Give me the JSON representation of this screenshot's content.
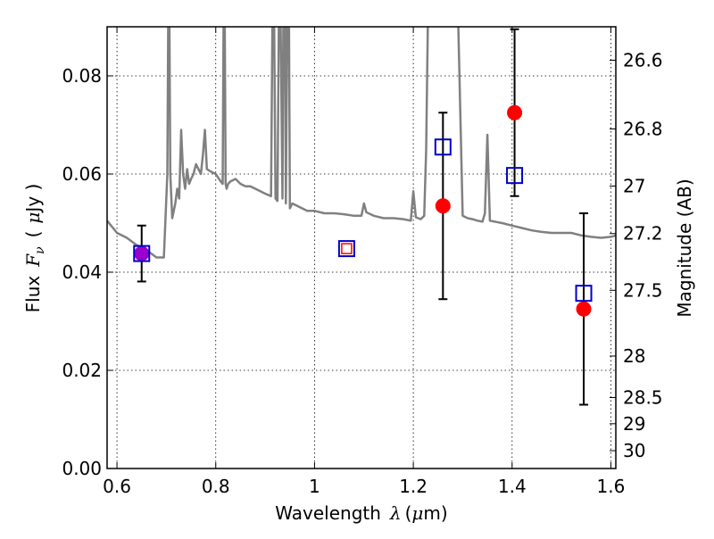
{
  "chart_data": {
    "type": "scatter",
    "title": "",
    "xlabel": "Wavelength",
    "xlabel_symbol": "λ",
    "xlabel_unit_open": "(",
    "xlabel_unit_mu": "μ",
    "xlabel_unit_rest": "m)",
    "ylabel_prefix": "Flux",
    "ylabel_symbol": "F",
    "ylabel_subscript": "ν",
    "ylabel_open": "(",
    "ylabel_mu": "μ",
    "ylabel_rest": "Jy )",
    "y2label": "Magnitude (AB)",
    "xlim": [
      0.58,
      1.61
    ],
    "ylim": [
      0.0,
      0.09
    ],
    "grid": true,
    "xticks": [
      {
        "value": 0.6,
        "label": "0.6"
      },
      {
        "value": 0.8,
        "label": "0.8"
      },
      {
        "value": 1.0,
        "label": "1"
      },
      {
        "value": 1.2,
        "label": "1.2"
      },
      {
        "value": 1.4,
        "label": "1.4"
      },
      {
        "value": 1.6,
        "label": "1.6"
      }
    ],
    "yticks": [
      {
        "value": 0.0,
        "label": "0.00"
      },
      {
        "value": 0.02,
        "label": "0.02"
      },
      {
        "value": 0.04,
        "label": "0.04"
      },
      {
        "value": 0.06,
        "label": "0.06"
      },
      {
        "value": 0.08,
        "label": "0.08"
      }
    ],
    "mag_ticks": [
      {
        "mag": 26.6,
        "label": "26.6"
      },
      {
        "mag": 26.8,
        "label": "26.8"
      },
      {
        "mag": 27.0,
        "label": "27"
      },
      {
        "mag": 27.2,
        "label": "27.2"
      },
      {
        "mag": 27.5,
        "label": "27.5"
      },
      {
        "mag": 28.0,
        "label": "28"
      },
      {
        "mag": 28.5,
        "label": "28.5"
      },
      {
        "mag": 29.0,
        "label": "29"
      },
      {
        "mag": 30.0,
        "label": "30"
      }
    ],
    "model_spectrum": {
      "color": "#808080",
      "x": [
        0.58,
        0.6,
        0.62,
        0.64,
        0.66,
        0.68,
        0.695,
        0.702,
        0.704,
        0.706,
        0.708,
        0.712,
        0.718,
        0.722,
        0.726,
        0.73,
        0.734,
        0.738,
        0.742,
        0.746,
        0.75,
        0.755,
        0.76,
        0.765,
        0.77,
        0.774,
        0.778,
        0.782,
        0.79,
        0.8,
        0.81,
        0.814,
        0.816,
        0.818,
        0.82,
        0.822,
        0.825,
        0.83,
        0.84,
        0.85,
        0.86,
        0.87,
        0.88,
        0.89,
        0.9,
        0.912,
        0.915,
        0.918,
        0.921,
        0.925,
        0.928,
        0.931,
        0.935,
        0.937,
        0.94,
        0.942,
        0.945,
        0.948,
        0.95,
        0.955,
        0.965,
        0.975,
        0.985,
        1.0,
        1.02,
        1.04,
        1.06,
        1.08,
        1.095,
        1.1,
        1.105,
        1.12,
        1.14,
        1.16,
        1.18,
        1.195,
        1.2,
        1.205,
        1.215,
        1.222,
        1.226,
        1.23,
        1.24,
        1.25,
        1.26,
        1.27,
        1.28,
        1.29,
        1.3,
        1.31,
        1.32,
        1.33,
        1.34,
        1.345,
        1.35,
        1.355,
        1.38,
        1.4,
        1.42,
        1.44,
        1.46,
        1.48,
        1.5,
        1.52,
        1.54,
        1.56,
        1.58,
        1.6,
        1.61
      ],
      "y": [
        0.0505,
        0.048,
        0.047,
        0.0455,
        0.0445,
        0.043,
        0.043,
        0.06,
        0.095,
        0.095,
        0.06,
        0.051,
        0.054,
        0.057,
        0.055,
        0.069,
        0.06,
        0.057,
        0.061,
        0.058,
        0.059,
        0.06,
        0.062,
        0.061,
        0.06,
        0.064,
        0.069,
        0.061,
        0.0605,
        0.06,
        0.0585,
        0.058,
        0.095,
        0.095,
        0.058,
        0.057,
        0.058,
        0.0585,
        0.059,
        0.058,
        0.0575,
        0.0575,
        0.057,
        0.0565,
        0.056,
        0.0555,
        0.095,
        0.095,
        0.055,
        0.0545,
        0.095,
        0.095,
        0.055,
        0.095,
        0.095,
        0.054,
        0.095,
        0.095,
        0.053,
        0.054,
        0.0535,
        0.053,
        0.0525,
        0.0525,
        0.052,
        0.052,
        0.0518,
        0.0515,
        0.0515,
        0.054,
        0.0522,
        0.0515,
        0.051,
        0.051,
        0.0508,
        0.0505,
        0.0565,
        0.0512,
        0.0508,
        0.0515,
        0.065,
        0.095,
        0.095,
        0.095,
        0.095,
        0.095,
        0.095,
        0.095,
        0.0515,
        0.051,
        0.0508,
        0.0505,
        0.0503,
        0.052,
        0.068,
        0.0505,
        0.05,
        0.0495,
        0.049,
        0.0485,
        0.0482,
        0.048,
        0.048,
        0.048,
        0.0475,
        0.0472,
        0.047,
        0.0472,
        0.0475
      ]
    },
    "series": [
      {
        "marker": "open-square",
        "color": "#0000cc",
        "points": [
          {
            "x": 0.65,
            "y": 0.0438
          },
          {
            "x": 1.065,
            "y": 0.0448
          },
          {
            "x": 1.26,
            "y": 0.0655
          },
          {
            "x": 1.405,
            "y": 0.0597
          },
          {
            "x": 1.545,
            "y": 0.0357
          }
        ]
      },
      {
        "marker": "filled-circle",
        "color": "#ff0000",
        "points": [
          {
            "x": 0.65,
            "y": 0.0438,
            "err": 0.0057
          },
          {
            "x": 1.26,
            "y": 0.0535,
            "err": 0.019
          },
          {
            "x": 1.405,
            "y": 0.0725,
            "err": 0.017
          },
          {
            "x": 1.545,
            "y": 0.0325,
            "err": 0.0195
          }
        ]
      },
      {
        "marker": "open-square-small",
        "color": "#ff0000",
        "points": [
          {
            "x": 1.065,
            "y": 0.0448
          }
        ]
      }
    ],
    "highlight_color": "#9900cc"
  }
}
